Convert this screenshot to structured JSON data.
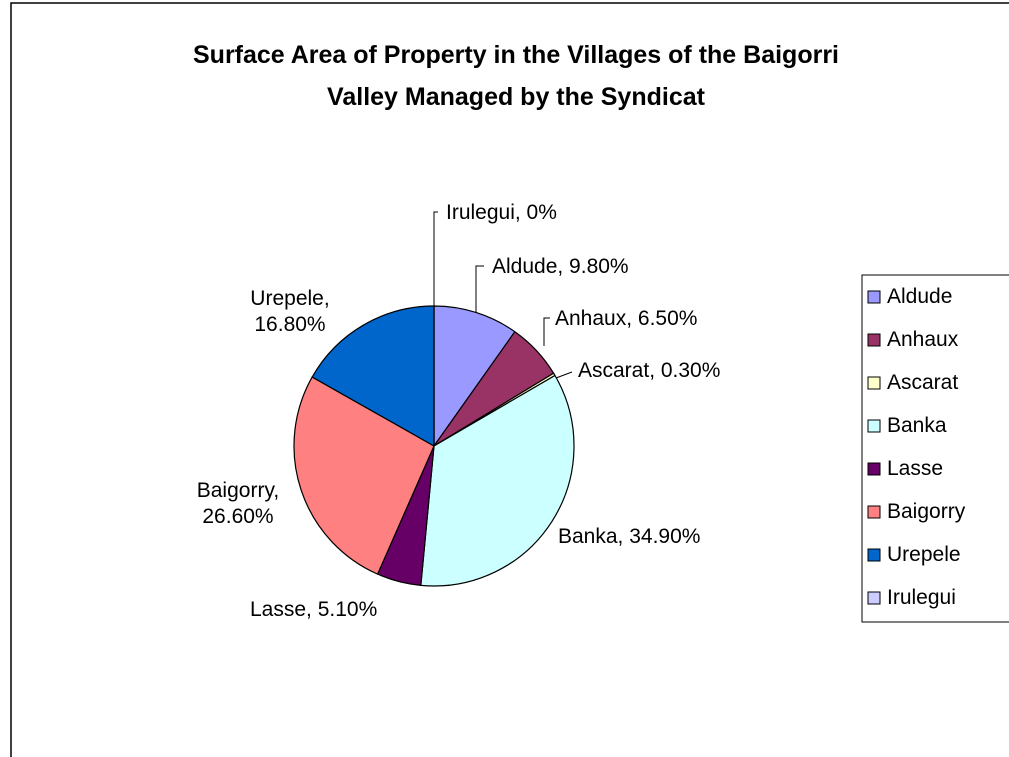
{
  "chart_data": {
    "type": "pie",
    "title": "Surface Area of Property in the Villages of the Baigorri Valley Managed by the Syndicat",
    "categories": [
      "Aldude",
      "Anhaux",
      "Ascarat",
      "Banka",
      "Lasse",
      "Baigorry",
      "Urepele",
      "Irulegui"
    ],
    "values": [
      9.8,
      6.5,
      0.3,
      34.9,
      5.1,
      26.6,
      16.8,
      0
    ],
    "value_labels": [
      "Aldude, 9.80%",
      "Anhaux, 6.50%",
      "Ascarat, 0.30%",
      "Banka, 34.90%",
      "Lasse, 5.10%",
      "Baigorry, 26.60%",
      "Urepele, 16.80%",
      "Irulegui, 0%"
    ],
    "colors": [
      "#9999ff",
      "#993366",
      "#ffffcc",
      "#ccffff",
      "#660066",
      "#ff8080",
      "#0066cc",
      "#ccccff"
    ],
    "legend": "right"
  }
}
